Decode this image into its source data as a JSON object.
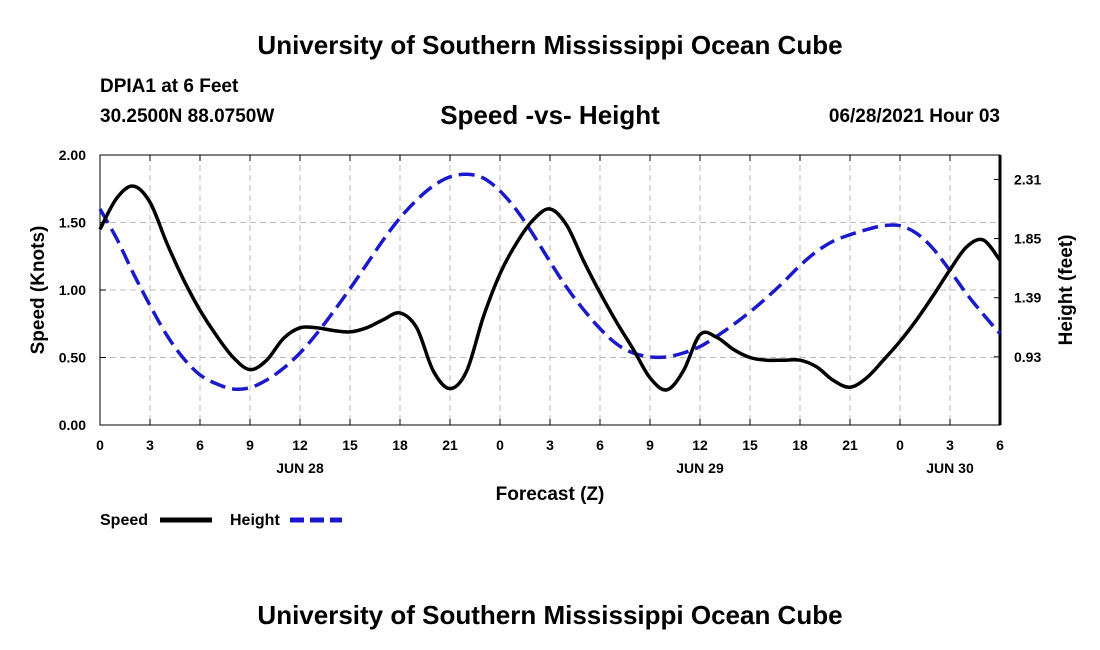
{
  "header": {
    "title": "University of Southern Mississippi Ocean Cube",
    "station": "DPIA1 at 6 Feet",
    "coords": "30.2500N  88.0750W",
    "chart_title": "Speed -vs- Height",
    "datetime": "06/28/2021 Hour 03"
  },
  "footer": {
    "title": "University of Southern Mississippi Ocean Cube"
  },
  "colors": {
    "speed": "#000000",
    "height": "#1a1acc",
    "grid": "#bbbbbb"
  },
  "legend": {
    "items": [
      {
        "label": "Speed",
        "style": "solid",
        "color": "#000000"
      },
      {
        "label": "Height",
        "style": "dashed",
        "color": "#1a1acc"
      }
    ]
  },
  "chart_data": {
    "type": "line",
    "title": "Speed -vs- Height",
    "xlabel": "Forecast (Z)",
    "ylabel": "Speed (Knots)",
    "y2label": "Height (feet)",
    "xlim": [
      0,
      54
    ],
    "ylim": [
      0,
      2.0
    ],
    "y2lim": [
      0.4,
      2.5
    ],
    "grid": true,
    "legend_position": "bottom-left",
    "x_ticks": [
      0,
      3,
      6,
      9,
      12,
      15,
      18,
      21,
      24,
      27,
      30,
      33,
      36,
      39,
      42,
      45,
      48,
      51,
      54
    ],
    "x_tick_labels": [
      "0",
      "3",
      "6",
      "9",
      "12",
      "15",
      "18",
      "21",
      "0",
      "3",
      "6",
      "9",
      "12",
      "15",
      "18",
      "21",
      "0",
      "3",
      "6"
    ],
    "date_labels": [
      {
        "x": 12,
        "label": "JUN 28"
      },
      {
        "x": 36,
        "label": "JUN 29"
      },
      {
        "x": 51,
        "label": "JUN 30"
      }
    ],
    "y_ticks": [
      0,
      0.5,
      1.0,
      1.5,
      2.0
    ],
    "y_tick_labels": [
      "0.00",
      "0.50",
      "1.00",
      "1.50",
      "2.00"
    ],
    "y2_ticks": [
      0.93,
      1.39,
      1.85,
      2.31
    ],
    "y2_tick_labels": [
      "0.93",
      "1.39",
      "1.85",
      "2.31"
    ],
    "series": [
      {
        "name": "Speed",
        "axis": "left",
        "x": [
          0,
          1,
          2,
          3,
          4,
          5,
          6,
          7,
          8,
          9,
          10,
          11,
          12,
          13,
          14,
          15,
          16,
          17,
          18,
          19,
          20,
          21,
          22,
          23,
          24,
          25,
          26,
          27,
          28,
          29,
          30,
          31,
          32,
          33,
          34,
          35,
          36,
          37,
          38,
          39,
          40,
          41,
          42,
          43,
          44,
          45,
          46,
          47,
          48,
          49,
          50,
          51,
          52,
          53,
          54
        ],
        "values": [
          1.45,
          1.68,
          1.77,
          1.65,
          1.35,
          1.08,
          0.85,
          0.66,
          0.5,
          0.41,
          0.48,
          0.64,
          0.72,
          0.72,
          0.7,
          0.69,
          0.72,
          0.78,
          0.83,
          0.72,
          0.4,
          0.27,
          0.4,
          0.8,
          1.12,
          1.35,
          1.52,
          1.6,
          1.48,
          1.22,
          0.98,
          0.76,
          0.56,
          0.35,
          0.26,
          0.4,
          0.67,
          0.65,
          0.56,
          0.5,
          0.48,
          0.48,
          0.48,
          0.43,
          0.33,
          0.28,
          0.35,
          0.48,
          0.62,
          0.78,
          0.96,
          1.15,
          1.32,
          1.37,
          1.22
        ]
      },
      {
        "name": "Height",
        "axis": "right",
        "x": [
          0,
          1,
          2,
          3,
          4,
          5,
          6,
          7,
          8,
          9,
          10,
          11,
          12,
          13,
          14,
          15,
          16,
          17,
          18,
          19,
          20,
          21,
          22,
          23,
          24,
          25,
          26,
          27,
          28,
          29,
          30,
          31,
          32,
          33,
          34,
          35,
          36,
          37,
          38,
          39,
          40,
          41,
          42,
          43,
          44,
          45,
          46,
          47,
          48,
          49,
          50,
          51,
          52,
          53,
          54
        ],
        "values": [
          2.08,
          1.85,
          1.58,
          1.33,
          1.1,
          0.92,
          0.79,
          0.72,
          0.68,
          0.69,
          0.75,
          0.84,
          0.96,
          1.11,
          1.28,
          1.46,
          1.65,
          1.84,
          2.01,
          2.15,
          2.26,
          2.33,
          2.35,
          2.32,
          2.22,
          2.07,
          1.88,
          1.67,
          1.47,
          1.3,
          1.15,
          1.03,
          0.96,
          0.93,
          0.93,
          0.96,
          1.01,
          1.09,
          1.18,
          1.28,
          1.39,
          1.51,
          1.64,
          1.75,
          1.83,
          1.88,
          1.92,
          1.95,
          1.95,
          1.89,
          1.77,
          1.6,
          1.42,
          1.26,
          1.11
        ]
      }
    ]
  }
}
